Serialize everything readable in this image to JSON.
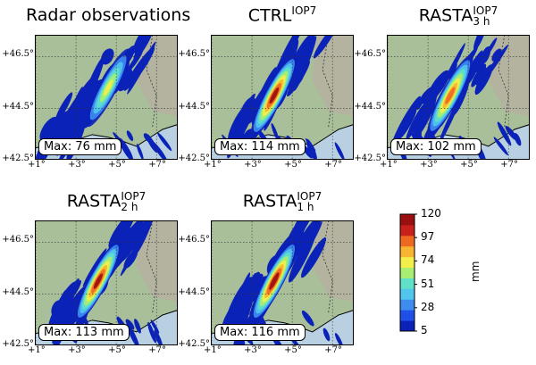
{
  "chart_data": {
    "type": "heatmap",
    "description_unit": "mm",
    "panels": [
      {
        "title_main": "Radar observations",
        "title_sup": "",
        "title_sub": "",
        "max_label": "Max: 76 mm",
        "max_value": 76
      },
      {
        "title_main": "CTRL",
        "title_sup": "IOP7",
        "title_sub": "",
        "max_label": "Max: 114 mm",
        "max_value": 114
      },
      {
        "title_main": "RASTA",
        "title_sup": "IOP7",
        "title_sub": "3 h",
        "max_label": "Max: 102 mm",
        "max_value": 102
      },
      {
        "title_main": "RASTA",
        "title_sup": "IOP7",
        "title_sub": "2 h",
        "max_label": "Max: 113 mm",
        "max_value": 113
      },
      {
        "title_main": "RASTA",
        "title_sup": "IOP7",
        "title_sub": "1 h",
        "max_label": "Max: 116 mm",
        "max_value": 116
      }
    ],
    "lat_ticks": [
      "+46.5°",
      "+44.5°",
      "+42.5°"
    ],
    "lon_ticks": [
      "+1°",
      "+3°",
      "+5°",
      "+7°"
    ],
    "lat_values": [
      46.5,
      44.5,
      42.5
    ],
    "lon_values": [
      1,
      3,
      5,
      7
    ],
    "lat_range": [
      42.5,
      47.3
    ],
    "lon_range": [
      1,
      8.1
    ],
    "colorbar": {
      "label": "mm",
      "ticks": [
        "120",
        "97",
        "74",
        "51",
        "28",
        "5"
      ],
      "tick_values": [
        120,
        97,
        74,
        51,
        28,
        5
      ],
      "range": [
        5,
        120
      ],
      "colors": [
        "#0b22b8",
        "#1e4fe6",
        "#3f8cf0",
        "#50c6ee",
        "#5fe0c8",
        "#a8ee72",
        "#f2ef4a",
        "#f7b531",
        "#ef6a21",
        "#c8201a",
        "#9a0f10"
      ]
    },
    "colors": {
      "sea": "#b9d0e2",
      "land": "#b3b3a0",
      "lowland": "#a9bf9a",
      "coast": "#000000"
    }
  }
}
